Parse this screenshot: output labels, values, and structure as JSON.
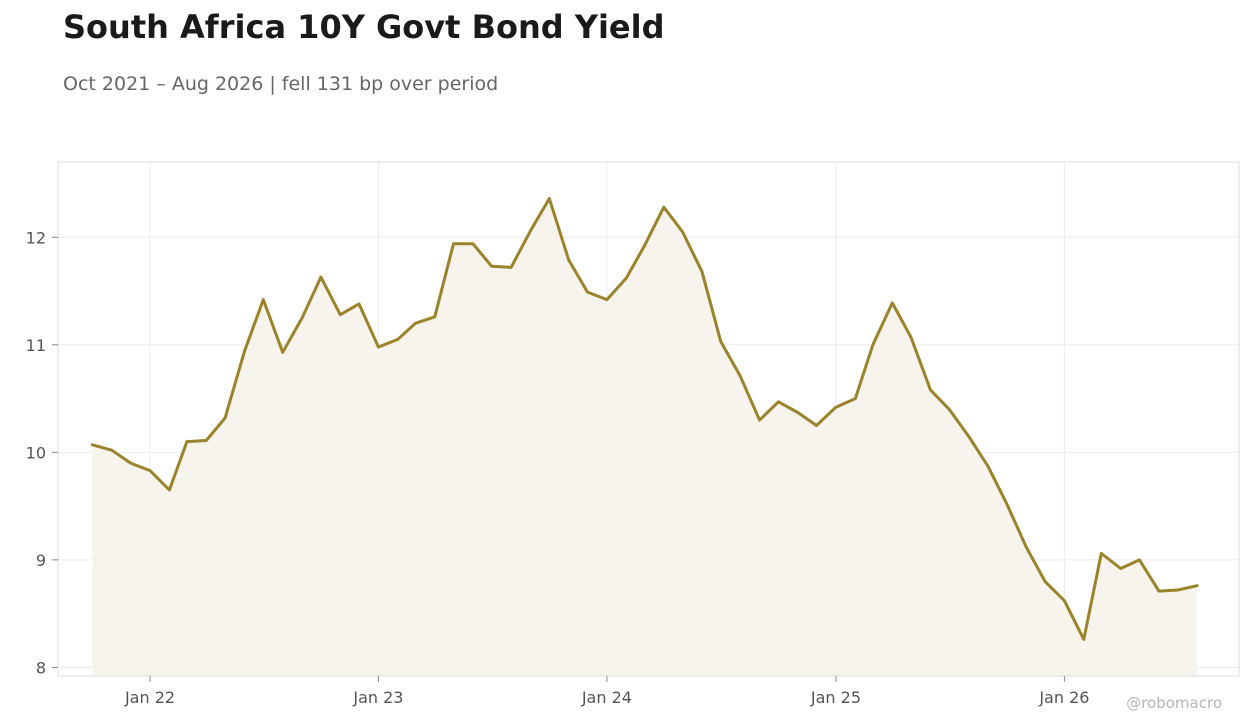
{
  "title": "South Africa 10Y Govt Bond Yield",
  "subtitle": "Oct 2021 – Aug 2026 | fell 131 bp over period",
  "watermark": "@robomacro",
  "colors": {
    "line": "#9a832a",
    "fill": "#f7f4ee",
    "grid": "#ececec",
    "frame": "#dddddd"
  },
  "chart_data": {
    "type": "area",
    "title": "South Africa 10Y Govt Bond Yield",
    "subtitle": "Oct 2021 – Aug 2026 | fell 131 bp over period",
    "xlabel": "",
    "ylabel": "",
    "grid": true,
    "legend": "none",
    "ylim": [
      7.92,
      12.7
    ],
    "xlim": [
      "2021-08-07",
      "2026-10-07"
    ],
    "yticks": [
      8,
      9,
      10,
      11,
      12
    ],
    "xticks": [
      {
        "date": "2022-01-01",
        "label": "Jan 22"
      },
      {
        "date": "2023-01-01",
        "label": "Jan 23"
      },
      {
        "date": "2024-01-01",
        "label": "Jan 24"
      },
      {
        "date": "2025-01-01",
        "label": "Jan 25"
      },
      {
        "date": "2026-01-01",
        "label": "Jan 26"
      }
    ],
    "series": [
      {
        "x": [
          "2021-10-01",
          "2021-11-01",
          "2021-12-01",
          "2022-01-01",
          "2022-02-01",
          "2022-03-01",
          "2022-04-01",
          "2022-05-01",
          "2022-06-01",
          "2022-07-01",
          "2022-08-01",
          "2022-09-01",
          "2022-10-01",
          "2022-11-01",
          "2022-12-01",
          "2023-01-01",
          "2023-02-01",
          "2023-03-01",
          "2023-04-01",
          "2023-05-01",
          "2023-06-01",
          "2023-07-01",
          "2023-08-01",
          "2023-09-01",
          "2023-10-01",
          "2023-11-01",
          "2023-12-01",
          "2024-01-01",
          "2024-02-01",
          "2024-03-01",
          "2024-04-01",
          "2024-05-01",
          "2024-06-01",
          "2024-07-01",
          "2024-08-01",
          "2024-09-01",
          "2024-10-01",
          "2024-11-01",
          "2024-12-01",
          "2025-01-01",
          "2025-02-01",
          "2025-03-01",
          "2025-04-01",
          "2025-05-01",
          "2025-06-01",
          "2025-07-01",
          "2025-08-01",
          "2025-09-01",
          "2025-10-01",
          "2025-11-01",
          "2025-12-01",
          "2026-01-01",
          "2026-02-01",
          "2026-03-01",
          "2026-04-01",
          "2026-05-01",
          "2026-06-01",
          "2026-07-01",
          "2026-08-01"
        ],
        "values": [
          10.07,
          10.02,
          9.9,
          9.83,
          9.65,
          10.1,
          10.11,
          10.32,
          10.94,
          11.42,
          10.93,
          11.25,
          11.63,
          11.28,
          11.38,
          10.98,
          11.05,
          11.2,
          11.26,
          11.94,
          11.94,
          11.73,
          11.72,
          12.06,
          12.36,
          11.79,
          11.49,
          11.42,
          11.62,
          11.92,
          12.28,
          12.05,
          11.68,
          11.03,
          10.71,
          10.3,
          10.47,
          10.37,
          10.25,
          10.42,
          10.5,
          11.0,
          11.39,
          11.07,
          10.58,
          10.4,
          10.15,
          9.87,
          9.52,
          9.12,
          8.8,
          8.62,
          8.26,
          9.06,
          8.92,
          9.0,
          8.71,
          8.72,
          8.76
        ]
      }
    ]
  }
}
